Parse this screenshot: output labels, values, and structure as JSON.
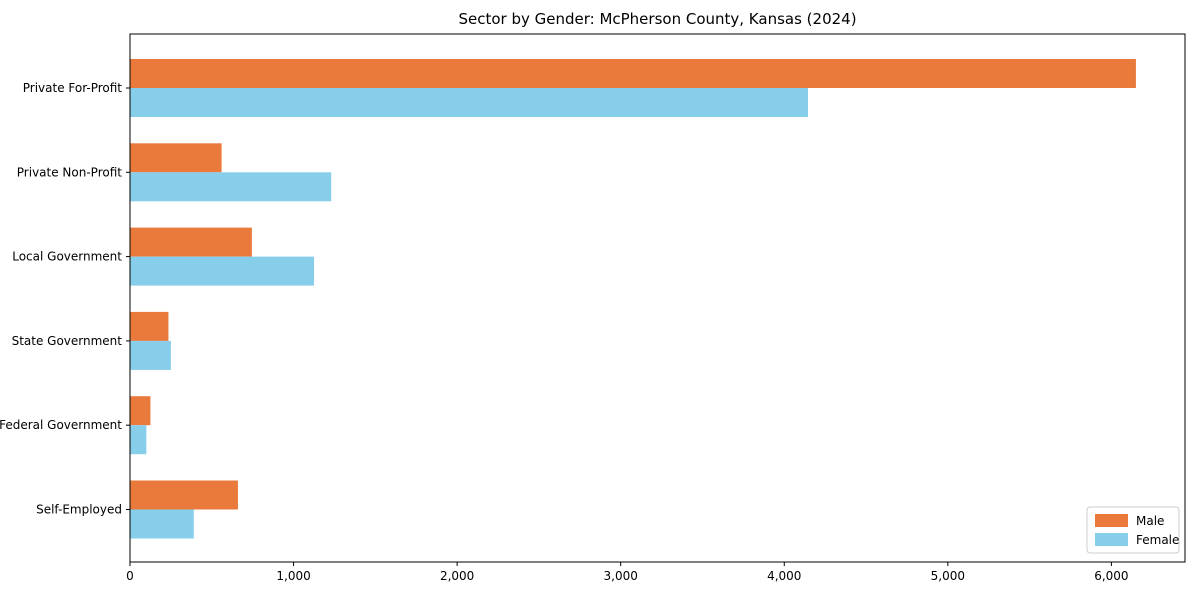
{
  "chart_data": {
    "type": "bar",
    "orientation": "horizontal",
    "title": "Sector by Gender: McPherson County, Kansas (2024)",
    "xlabel": "",
    "ylabel": "",
    "categories": [
      "Private For-Profit",
      "Private Non-Profit",
      "Local Government",
      "State Government",
      "Federal Government",
      "Self-Employed"
    ],
    "series": [
      {
        "name": "Male",
        "color": "#e97a3c",
        "values": [
          6150,
          560,
          745,
          235,
          125,
          660
        ]
      },
      {
        "name": "Female",
        "color": "#87ceeb",
        "values": [
          4145,
          1230,
          1125,
          250,
          100,
          390
        ]
      }
    ],
    "x_ticks": [
      0,
      1000,
      2000,
      3000,
      4000,
      5000,
      6000
    ],
    "x_tick_labels": [
      "0",
      "1,000",
      "2,000",
      "3,000",
      "4,000",
      "5,000",
      "6,000"
    ],
    "xlim": [
      0,
      6450
    ],
    "grid": false,
    "legend": {
      "position": "lower right",
      "labels": [
        "Male",
        "Female"
      ]
    },
    "colors": {
      "axis": "#000000",
      "text": "#000000",
      "legend_border": "#cccccc",
      "background": "#ffffff"
    }
  }
}
